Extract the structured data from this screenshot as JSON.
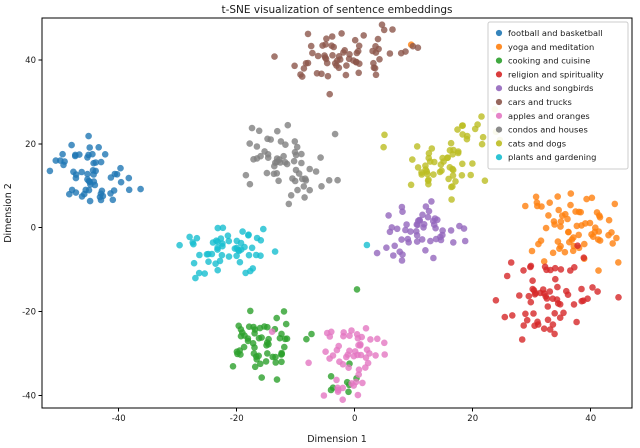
{
  "title": "t-SNE visualization of sentence embeddings",
  "chart_data": {
    "type": "scatter",
    "title": "t-SNE visualization of sentence embeddings",
    "xlabel": "Dimension 1",
    "ylabel": "Dimension 2",
    "xlim": [
      -53,
      47
    ],
    "ylim": [
      -43,
      50
    ],
    "xticks": [
      -40,
      -20,
      0,
      20,
      40
    ],
    "yticks": [
      -40,
      -20,
      0,
      20,
      40
    ],
    "grid": false,
    "legend_position": "upper right",
    "marker_alpha": 0.8,
    "marker_radius": 3.3,
    "seed": 42,
    "series": [
      {
        "name": "football and basketball",
        "color": "#1f77b4",
        "blobs": [
          {
            "cx": -46.5,
            "cy": 16.5,
            "sx": 2.8,
            "sy": 2.6,
            "n": 30
          },
          {
            "cx": -43.5,
            "cy": 9.5,
            "sx": 3.0,
            "sy": 2.2,
            "n": 28
          }
        ]
      },
      {
        "name": "yoga and meditation",
        "color": "#ff7f0e",
        "blobs": [
          {
            "cx": 37.5,
            "cy": -1.0,
            "sx": 3.6,
            "sy": 4.2,
            "n": 60
          },
          {
            "cx": 33.0,
            "cy": 6.5,
            "sx": 1.8,
            "sy": 1.2,
            "n": 6
          },
          {
            "cx": 9.0,
            "cy": 44.0,
            "sx": 0.6,
            "sy": 0.6,
            "n": 1
          }
        ]
      },
      {
        "name": "cooking and cuisine",
        "color": "#2ca02c",
        "blobs": [
          {
            "cx": -15.0,
            "cy": -27.0,
            "sx": 4.2,
            "sy": 3.6,
            "n": 58
          },
          {
            "cx": -4.0,
            "cy": -36.0,
            "sx": 2.2,
            "sy": 2.0,
            "n": 7
          },
          {
            "cx": 0.0,
            "cy": -15.0,
            "sx": 0.4,
            "sy": 0.4,
            "n": 1
          }
        ]
      },
      {
        "name": "religion and spirituality",
        "color": "#d62728",
        "blobs": [
          {
            "cx": 33.0,
            "cy": -17.0,
            "sx": 4.2,
            "sy": 4.4,
            "n": 65
          }
        ]
      },
      {
        "name": "ducks and songbirds",
        "color": "#9467bd",
        "blobs": [
          {
            "cx": 11.0,
            "cy": -0.5,
            "sx": 3.4,
            "sy": 3.6,
            "n": 52
          },
          {
            "cx": 3.0,
            "cy": -6.0,
            "sx": 0.6,
            "sy": 0.6,
            "n": 1
          }
        ]
      },
      {
        "name": "cars and trucks",
        "color": "#8c564b",
        "blobs": [
          {
            "cx": -4.0,
            "cy": 40.0,
            "sx": 4.5,
            "sy": 2.8,
            "n": 55
          },
          {
            "cx": 6.0,
            "cy": 43.0,
            "sx": 2.5,
            "sy": 2.0,
            "n": 12
          }
        ]
      },
      {
        "name": "apples and oranges",
        "color": "#e377c2",
        "blobs": [
          {
            "cx": -1.0,
            "cy": -29.0,
            "sx": 3.2,
            "sy": 2.8,
            "n": 40
          },
          {
            "cx": -2.0,
            "cy": -37.0,
            "sx": 2.4,
            "sy": 1.8,
            "n": 14
          },
          {
            "cx": -14.0,
            "cy": -25.0,
            "sx": 0.4,
            "sy": 0.4,
            "n": 1
          }
        ]
      },
      {
        "name": "condos and houses",
        "color": "#7f7f7f",
        "blobs": [
          {
            "cx": -12.0,
            "cy": 16.0,
            "sx": 3.2,
            "sy": 3.8,
            "n": 50
          },
          {
            "cx": -7.0,
            "cy": 10.0,
            "sx": 2.0,
            "sy": 1.5,
            "n": 8
          }
        ]
      },
      {
        "name": "cats and dogs",
        "color": "#bcbd22",
        "blobs": [
          {
            "cx": 14.0,
            "cy": 15.0,
            "sx": 3.6,
            "sy": 3.6,
            "n": 48
          },
          {
            "cx": 20.0,
            "cy": 22.0,
            "sx": 2.2,
            "sy": 2.5,
            "n": 12
          },
          {
            "cx": 22.0,
            "cy": 27.5,
            "sx": 0.8,
            "sy": 0.8,
            "n": 2
          }
        ]
      },
      {
        "name": "plants and gardening",
        "color": "#17becf",
        "blobs": [
          {
            "cx": -22.0,
            "cy": -5.0,
            "sx": 3.8,
            "sy": 3.2,
            "n": 55
          },
          {
            "cx": 2.0,
            "cy": -4.0,
            "sx": 0.4,
            "sy": 0.4,
            "n": 1
          }
        ]
      }
    ]
  }
}
